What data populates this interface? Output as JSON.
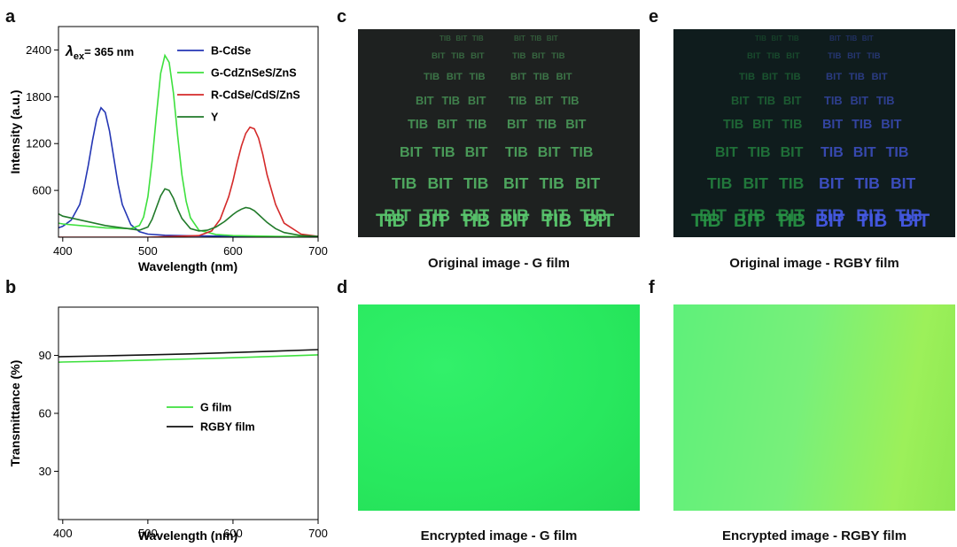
{
  "panels": {
    "a": "a",
    "b": "b",
    "c": "c",
    "d": "d",
    "e": "e",
    "f": "f"
  },
  "captions": {
    "c": "Original image - G film",
    "e": "Original image - RGBY film",
    "d": "Encrypted image - G film",
    "f": "Encrypted image - RGBY film"
  },
  "photo_text": {
    "word": "BIT",
    "mirrored_word": "TIB"
  },
  "chart_data": [
    {
      "type": "line",
      "title": "",
      "annotation": {
        "lambda": "λ",
        "sub": "ex",
        "value": "= 365 nm"
      },
      "xlabel": "Wavelength (nm)",
      "ylabel": "Intensity (a.u.)",
      "xlim": [
        395,
        700
      ],
      "ylim": [
        0,
        2700
      ],
      "xticks": [
        400,
        500,
        600,
        700
      ],
      "yticks": [
        600,
        1200,
        1800,
        2400
      ],
      "legend_position": "top-right",
      "series": [
        {
          "name": "B-CdSe",
          "color": "#2436b4",
          "x": [
            395,
            400,
            410,
            420,
            425,
            430,
            435,
            440,
            445,
            450,
            455,
            460,
            465,
            470,
            480,
            490,
            500,
            520,
            550,
            600,
            650,
            700
          ],
          "y": [
            120,
            140,
            220,
            420,
            640,
            920,
            1240,
            1520,
            1660,
            1600,
            1360,
            1020,
            680,
            420,
            160,
            70,
            40,
            25,
            18,
            12,
            8,
            5
          ]
        },
        {
          "name": "G-CdZnSeS/ZnS",
          "color": "#3ee03e",
          "x": [
            395,
            400,
            450,
            480,
            490,
            495,
            500,
            505,
            510,
            515,
            520,
            525,
            530,
            535,
            540,
            545,
            550,
            560,
            580,
            600,
            650,
            700
          ],
          "y": [
            180,
            170,
            120,
            110,
            150,
            260,
            520,
            980,
            1560,
            2100,
            2330,
            2240,
            1850,
            1300,
            800,
            460,
            250,
            90,
            35,
            20,
            10,
            5
          ]
        },
        {
          "name": "R-CdSe/CdS/ZnS",
          "color": "#d42a2a",
          "x": [
            395,
            500,
            560,
            575,
            585,
            595,
            600,
            605,
            610,
            615,
            620,
            625,
            630,
            635,
            640,
            650,
            660,
            680,
            700
          ],
          "y": [
            0,
            0,
            20,
            80,
            230,
            520,
            720,
            960,
            1170,
            1330,
            1410,
            1390,
            1270,
            1060,
            800,
            420,
            180,
            40,
            10
          ]
        },
        {
          "name": "Y",
          "color": "#217a2a",
          "x": [
            395,
            400,
            450,
            490,
            500,
            505,
            510,
            515,
            520,
            525,
            530,
            535,
            540,
            550,
            560,
            570,
            580,
            590,
            600,
            605,
            610,
            615,
            620,
            625,
            630,
            640,
            650,
            660,
            680,
            700
          ],
          "y": [
            300,
            270,
            150,
            90,
            130,
            230,
            380,
            530,
            620,
            600,
            500,
            360,
            240,
            110,
            80,
            90,
            130,
            200,
            290,
            330,
            360,
            380,
            370,
            340,
            290,
            190,
            110,
            60,
            20,
            10
          ]
        }
      ]
    },
    {
      "type": "line",
      "title": "",
      "xlabel": "Wavelength (nm)",
      "ylabel": "Transmittance (%)",
      "xlim": [
        395,
        700
      ],
      "ylim": [
        5,
        115
      ],
      "xticks": [
        400,
        500,
        600,
        700
      ],
      "yticks": [
        30,
        60,
        90
      ],
      "legend_position": "center-right",
      "series": [
        {
          "name": "G film",
          "color": "#3ee03e",
          "x": [
            395,
            400,
            450,
            500,
            550,
            600,
            650,
            700
          ],
          "y": [
            86.5,
            86.6,
            87.0,
            87.6,
            88.2,
            88.8,
            89.5,
            90.3
          ]
        },
        {
          "name": "RGBY film",
          "color": "#111111",
          "x": [
            395,
            400,
            450,
            500,
            550,
            600,
            650,
            700
          ],
          "y": [
            89.3,
            89.4,
            89.8,
            90.3,
            90.8,
            91.5,
            92.2,
            93.0
          ]
        }
      ]
    }
  ]
}
